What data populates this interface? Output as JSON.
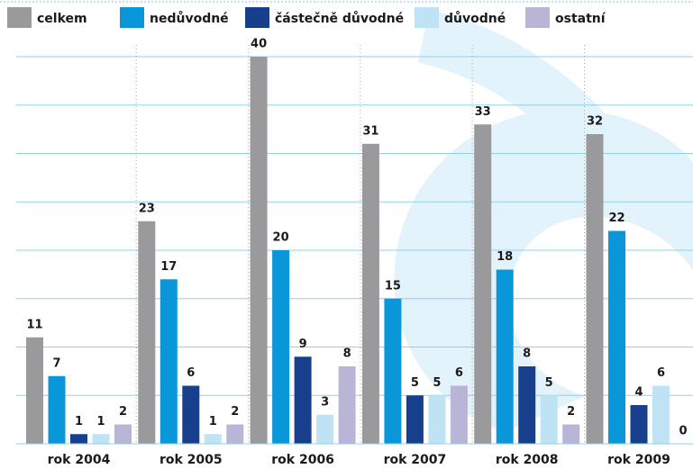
{
  "chart_data": {
    "type": "bar",
    "categories": [
      "rok 2004",
      "rok 2005",
      "rok 2006",
      "rok 2007",
      "rok 2008",
      "rok 2009"
    ],
    "series": [
      {
        "name": "celkem",
        "color": "#9a9a9d",
        "values": [
          11,
          23,
          40,
          31,
          33,
          32
        ]
      },
      {
        "name": "nedůvodné",
        "color": "#0a97d9",
        "values": [
          7,
          17,
          20,
          15,
          18,
          22
        ]
      },
      {
        "name": "částečně důvodné",
        "color": "#183f8c",
        "values": [
          1,
          6,
          9,
          5,
          8,
          4
        ]
      },
      {
        "name": "důvodné",
        "color": "#bfe3f5",
        "values": [
          1,
          1,
          3,
          5,
          5,
          6
        ]
      },
      {
        "name": "ostatní",
        "color": "#b9b5d7",
        "values": [
          2,
          2,
          8,
          6,
          2,
          0
        ]
      }
    ],
    "ylim": [
      0,
      40
    ],
    "yticks": [
      0,
      5,
      10,
      15,
      20,
      25,
      30,
      35,
      40
    ],
    "grid": true
  }
}
